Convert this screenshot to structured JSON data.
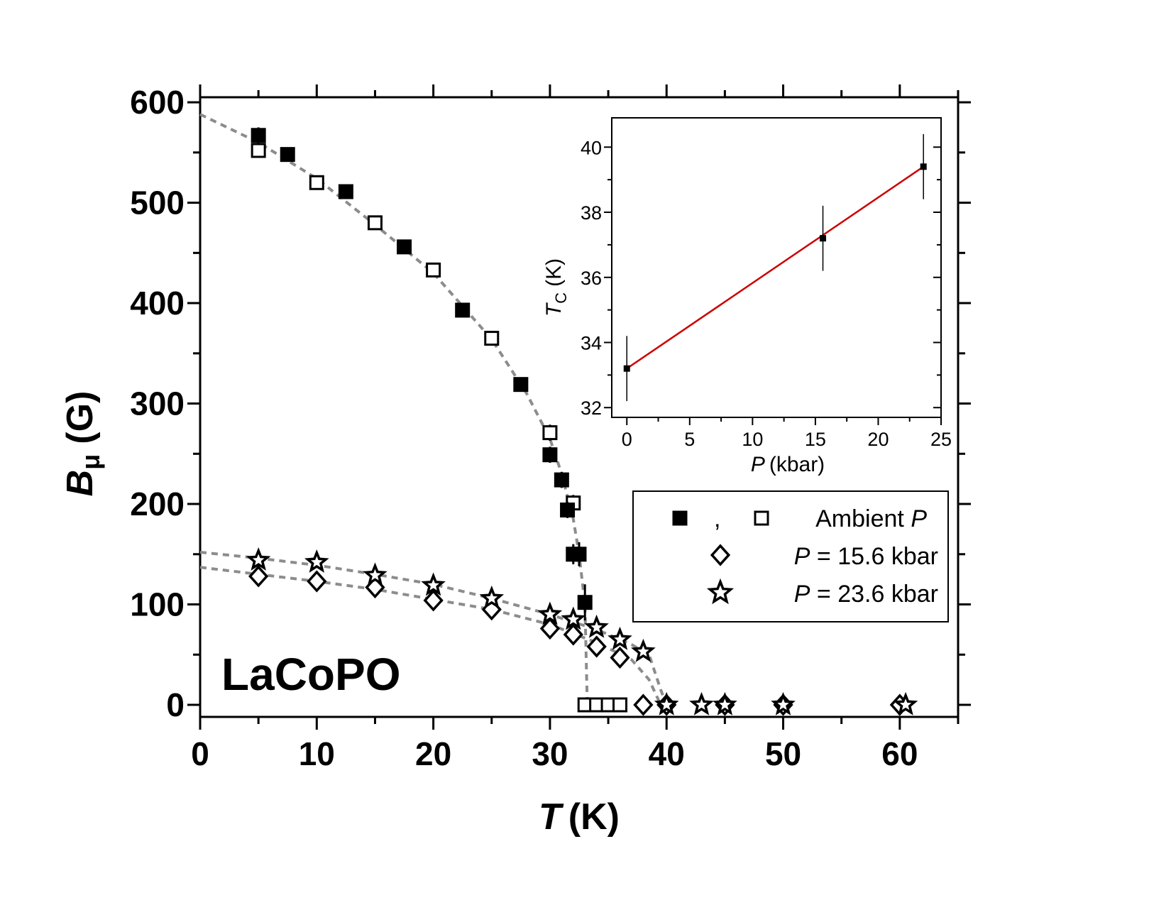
{
  "chart_data": [
    {
      "type": "scatter",
      "id": "main",
      "title": "",
      "xlabel": {
        "symbol": "T",
        "unit": "(K)"
      },
      "ylabel": {
        "symbol": "B",
        "subscript": "μ",
        "unit": "(G)"
      },
      "xlim": [
        0,
        65
      ],
      "ylim": [
        -12,
        605
      ],
      "xticks": [
        0,
        10,
        20,
        30,
        40,
        50,
        60
      ],
      "yticks": [
        0,
        100,
        200,
        300,
        400,
        500,
        600
      ],
      "annotation": "LaCoPO",
      "legend_position": "right-middle",
      "legend": [
        {
          "marker": "square-filled",
          "sep": ",",
          "marker2": "square-open",
          "label_pre": "Ambient ",
          "label_ital": "P",
          "label_post": ""
        },
        {
          "marker": "diamond-open",
          "label_pre": "",
          "label_ital": "P",
          "label_post": " = 15.6 kbar"
        },
        {
          "marker": "star",
          "label_pre": "",
          "label_ital": "P",
          "label_post": " = 23.6 kbar"
        }
      ],
      "series": [
        {
          "name": "Ambient P (filled)",
          "marker": "square-filled",
          "x": [
            5,
            7.5,
            12.5,
            17.5,
            22.5,
            27.5,
            30,
            31,
            31.5,
            32,
            32.5,
            33
          ],
          "y": [
            567,
            548,
            511,
            456,
            393,
            319,
            249,
            224,
            194,
            150,
            150,
            102
          ],
          "yerr": [
            8,
            6,
            6,
            6,
            6,
            6,
            8,
            8,
            8,
            10,
            12,
            18
          ]
        },
        {
          "name": "Ambient P (open)",
          "marker": "square-open",
          "x": [
            5,
            10,
            15,
            20,
            25,
            30,
            32,
            33,
            34,
            35,
            36
          ],
          "y": [
            552,
            520,
            480,
            433,
            365,
            271,
            201,
            0,
            0,
            0,
            0
          ],
          "yerr": [
            6,
            6,
            6,
            6,
            6,
            8,
            8,
            0,
            0,
            0,
            0
          ]
        },
        {
          "name": "P = 15.6 kbar",
          "marker": "diamond-open",
          "x": [
            5,
            10,
            15,
            20,
            25,
            30,
            32,
            34,
            36,
            38,
            40,
            45,
            50,
            60
          ],
          "y": [
            128,
            123,
            117,
            104,
            95,
            76,
            70,
            58,
            47,
            0,
            0,
            0,
            0,
            0
          ],
          "yerr": [
            5,
            5,
            5,
            5,
            5,
            5,
            5,
            5,
            5,
            0,
            0,
            0,
            0,
            0
          ]
        },
        {
          "name": "P = 23.6 kbar",
          "marker": "star",
          "x": [
            5,
            10,
            15,
            20,
            25,
            30,
            32,
            34,
            36,
            38,
            40,
            43,
            45,
            50,
            60.5
          ],
          "y": [
            144,
            142,
            129,
            119,
            106,
            90,
            85,
            77,
            65,
            53,
            0,
            0,
            0,
            0,
            0
          ],
          "yerr": [
            5,
            5,
            5,
            5,
            5,
            5,
            5,
            5,
            5,
            5,
            0,
            0,
            0,
            0,
            0
          ]
        }
      ],
      "fit_lines": [
        {
          "name": "ambient-fit",
          "x": [
            0,
            5,
            10,
            15,
            20,
            25,
            28,
            30,
            31,
            32,
            32.5,
            33,
            33.2
          ],
          "y": [
            588,
            560,
            524,
            478,
            430,
            364,
            310,
            265,
            230,
            185,
            150,
            100,
            0
          ]
        },
        {
          "name": "p15.6-fit",
          "x": [
            0,
            5,
            10,
            15,
            20,
            25,
            30,
            34,
            37,
            38.5,
            39.5
          ],
          "y": [
            137,
            130,
            123,
            115,
            105,
            95,
            80,
            62,
            45,
            25,
            0
          ]
        },
        {
          "name": "p23.6-fit",
          "x": [
            0,
            5,
            10,
            15,
            20,
            25,
            30,
            34,
            37,
            38.5,
            39.5,
            40
          ],
          "y": [
            152,
            146,
            139,
            130,
            120,
            106,
            90,
            75,
            60,
            50,
            15,
            0
          ]
        }
      ]
    },
    {
      "type": "line",
      "id": "inset",
      "title": "",
      "xlabel": {
        "symbol": "P",
        "unit": "(kbar)"
      },
      "ylabel": {
        "symbol": "T",
        "subscript": "C",
        "unit": "(K)"
      },
      "xlim": [
        -1.2,
        25
      ],
      "ylim": [
        31.7,
        40.9
      ],
      "xticks": [
        0,
        5,
        10,
        15,
        20,
        25
      ],
      "yticks": [
        32,
        34,
        36,
        38,
        40
      ],
      "series": [
        {
          "name": "Tc vs P",
          "marker": "square-filled",
          "x": [
            0,
            15.6,
            23.6
          ],
          "y": [
            33.2,
            37.2,
            39.4
          ],
          "yerr": [
            1.0,
            1.0,
            1.0
          ]
        }
      ],
      "fit": {
        "name": "linear-fit",
        "color": "#cc0000",
        "x": [
          0,
          23.6
        ],
        "y": [
          33.2,
          39.4
        ]
      }
    }
  ]
}
